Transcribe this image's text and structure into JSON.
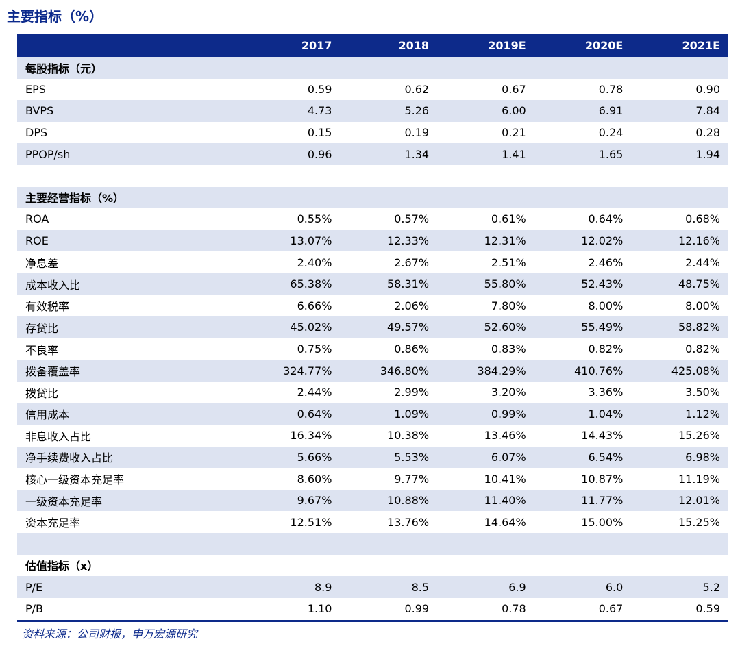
{
  "title": "主要指标（%）",
  "columns": [
    "",
    "2017",
    "2018",
    "2019E",
    "2020E",
    "2021E"
  ],
  "rows": [
    {
      "label": "每股指标（元）",
      "values": [
        "",
        "",
        "",
        "",
        ""
      ],
      "section": true,
      "shade": true
    },
    {
      "label": "EPS",
      "values": [
        "0.59",
        "0.62",
        "0.67",
        "0.78",
        "0.90"
      ],
      "shade": false
    },
    {
      "label": "BVPS",
      "values": [
        "4.73",
        "5.26",
        "6.00",
        "6.91",
        "7.84"
      ],
      "shade": true
    },
    {
      "label": "DPS",
      "values": [
        "0.15",
        "0.19",
        "0.21",
        "0.24",
        "0.28"
      ],
      "shade": false
    },
    {
      "label": "PPOP/sh",
      "values": [
        "0.96",
        "1.34",
        "1.41",
        "1.65",
        "1.94"
      ],
      "shade": true
    },
    {
      "label": "",
      "values": [
        "",
        "",
        "",
        "",
        ""
      ],
      "shade": false
    },
    {
      "label": "主要经营指标（%）",
      "values": [
        "",
        "",
        "",
        "",
        ""
      ],
      "section": true,
      "shade": true
    },
    {
      "label": "ROA",
      "values": [
        "0.55%",
        "0.57%",
        "0.61%",
        "0.64%",
        "0.68%"
      ],
      "shade": false
    },
    {
      "label": "ROE",
      "values": [
        "13.07%",
        "12.33%",
        "12.31%",
        "12.02%",
        "12.16%"
      ],
      "shade": true
    },
    {
      "label": "净息差",
      "values": [
        "2.40%",
        "2.67%",
        "2.51%",
        "2.46%",
        "2.44%"
      ],
      "shade": false
    },
    {
      "label": "成本收入比",
      "values": [
        "65.38%",
        "58.31%",
        "55.80%",
        "52.43%",
        "48.75%"
      ],
      "shade": true
    },
    {
      "label": "有效税率",
      "values": [
        "6.66%",
        "2.06%",
        "7.80%",
        "8.00%",
        "8.00%"
      ],
      "shade": false
    },
    {
      "label": "存贷比",
      "values": [
        "45.02%",
        "49.57%",
        "52.60%",
        "55.49%",
        "58.82%"
      ],
      "shade": true
    },
    {
      "label": "不良率",
      "values": [
        "0.75%",
        "0.86%",
        "0.83%",
        "0.82%",
        "0.82%"
      ],
      "shade": false
    },
    {
      "label": "拨备覆盖率",
      "values": [
        "324.77%",
        "346.80%",
        "384.29%",
        "410.76%",
        "425.08%"
      ],
      "shade": true
    },
    {
      "label": "拨贷比",
      "values": [
        "2.44%",
        "2.99%",
        "3.20%",
        "3.36%",
        "3.50%"
      ],
      "shade": false
    },
    {
      "label": "信用成本",
      "values": [
        "0.64%",
        "1.09%",
        "0.99%",
        "1.04%",
        "1.12%"
      ],
      "shade": true
    },
    {
      "label": "非息收入占比",
      "values": [
        "16.34%",
        "10.38%",
        "13.46%",
        "14.43%",
        "15.26%"
      ],
      "shade": false
    },
    {
      "label": "净手续费收入占比",
      "values": [
        "5.66%",
        "5.53%",
        "6.07%",
        "6.54%",
        "6.98%"
      ],
      "shade": true
    },
    {
      "label": "核心一级资本充足率",
      "values": [
        "8.60%",
        "9.77%",
        "10.41%",
        "10.87%",
        "11.19%"
      ],
      "shade": false
    },
    {
      "label": "一级资本充足率",
      "values": [
        "9.67%",
        "10.88%",
        "11.40%",
        "11.77%",
        "12.01%"
      ],
      "shade": true
    },
    {
      "label": "资本充足率",
      "values": [
        "12.51%",
        "13.76%",
        "14.64%",
        "15.00%",
        "15.25%"
      ],
      "shade": false
    },
    {
      "label": "",
      "values": [
        "",
        "",
        "",
        "",
        ""
      ],
      "shade": true
    },
    {
      "label": "估值指标（x）",
      "values": [
        "",
        "",
        "",
        "",
        ""
      ],
      "section": true,
      "shade": false
    },
    {
      "label": "P/E",
      "values": [
        "8.9",
        "8.5",
        "6.9",
        "6.0",
        "5.2"
      ],
      "shade": true
    },
    {
      "label": "P/B",
      "values": [
        "1.10",
        "0.99",
        "0.78",
        "0.67",
        "0.59"
      ],
      "shade": false
    }
  ],
  "source": "资料来源：公司财报，申万宏源研究",
  "colors": {
    "header_bg": "#0d2a8a",
    "title": "#0c2a8c",
    "shade": "#dde3f1"
  }
}
